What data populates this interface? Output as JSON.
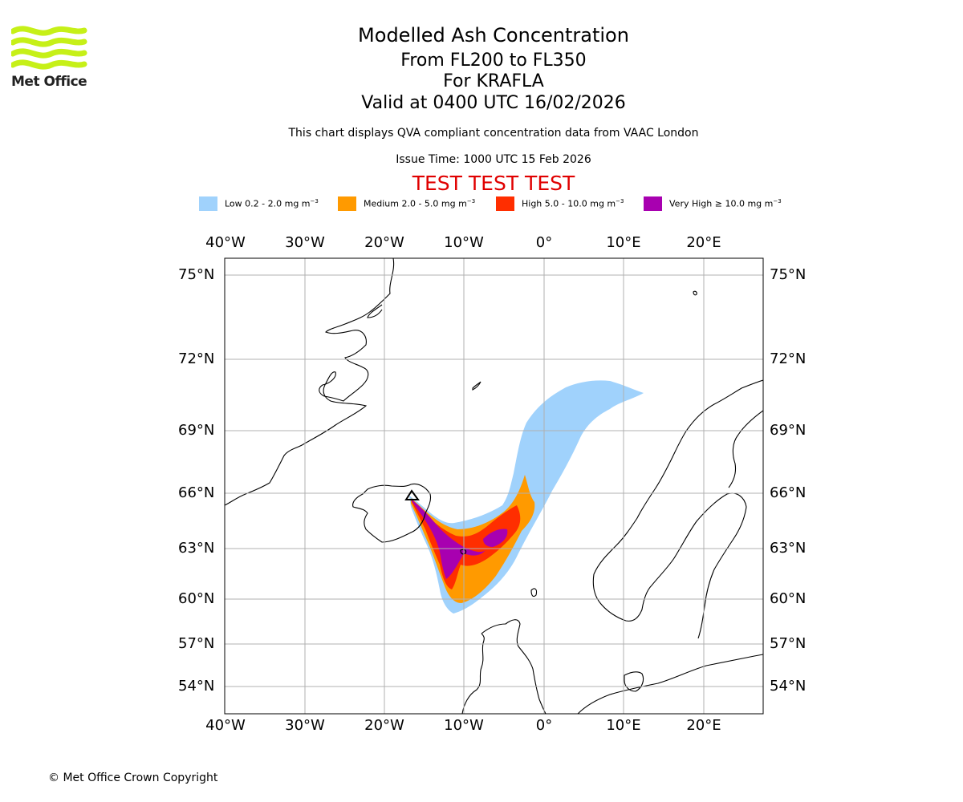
{
  "logo": {
    "text": "Met Office",
    "color": "#c6f018"
  },
  "header": {
    "title": "Modelled Ash Concentration",
    "levels": "From FL200 to FL350",
    "volcano": "For KRAFLA",
    "valid": "Valid at 0400 UTC 16/02/2026",
    "description": "This chart displays QVA compliant concentration data from VAAC London",
    "issue_time": "Issue Time: 1000 UTC 15 Feb 2026",
    "test_banner": "TEST TEST TEST"
  },
  "legend": [
    {
      "label": "Low 0.2 - 2.0 mg m",
      "sup": "−3",
      "color": "#a0d2fc"
    },
    {
      "label": "Medium 2.0 - 5.0 mg m",
      "sup": "−3",
      "color": "#ff9a00"
    },
    {
      "label": "High 5.0 - 10.0 mg m",
      "sup": "−3",
      "color": "#ff2e00"
    },
    {
      "label": "Very High ≥ 10.0 mg m",
      "sup": "−3",
      "color": "#a800b0"
    }
  ],
  "map": {
    "lon_labels": [
      "40°W",
      "30°W",
      "20°W",
      "10°W",
      "0°",
      "10°E",
      "20°E"
    ],
    "lat_labels": [
      "75°N",
      "72°N",
      "69°N",
      "66°N",
      "63°N",
      "60°N",
      "57°N",
      "54°N"
    ]
  },
  "footer": {
    "copyright": "© Met Office Crown Copyright"
  }
}
